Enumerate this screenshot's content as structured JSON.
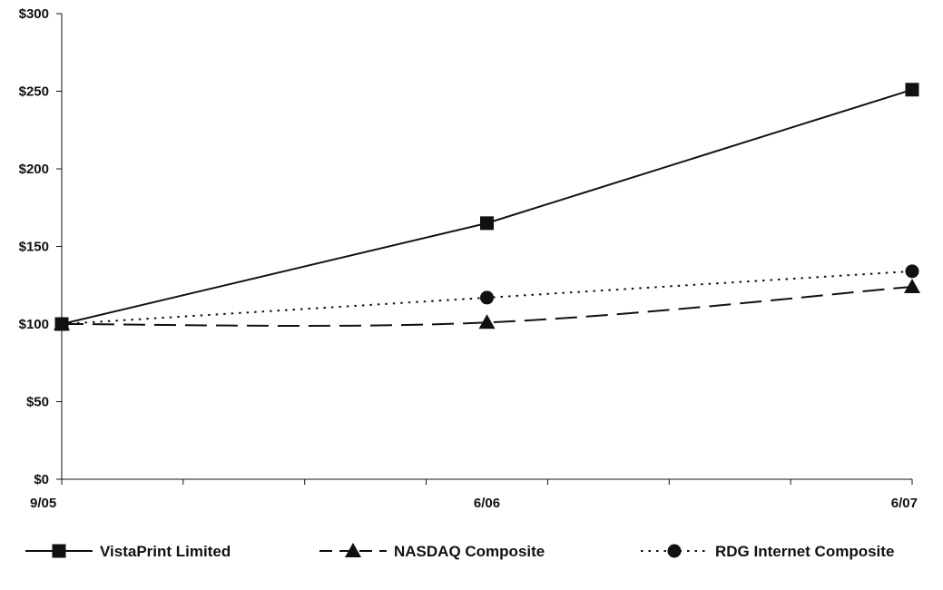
{
  "chart_data": {
    "type": "line",
    "title": "",
    "xlabel": "",
    "ylabel": "",
    "x": [
      "9/05",
      "6/06",
      "6/07"
    ],
    "x_minor_divisions": 7,
    "y_ticks": [
      "$0",
      "$50",
      "$100",
      "$150",
      "$200",
      "$250",
      "$300"
    ],
    "ylim": [
      0,
      300
    ],
    "grid": false,
    "legend_position": "bottom",
    "series": [
      {
        "name": "VistaPrint Limited",
        "values": [
          100,
          165,
          251
        ],
        "marker": "square",
        "dash": "solid",
        "smooth": false,
        "color": "#111111"
      },
      {
        "name": "NASDAQ Composite",
        "values": [
          100,
          101,
          124
        ],
        "marker": "triangle",
        "dash": "long-dash",
        "smooth": true,
        "color": "#111111"
      },
      {
        "name": "RDG Internet Composite",
        "values": [
          100,
          117,
          134
        ],
        "marker": "circle",
        "dash": "dotted",
        "smooth": false,
        "color": "#111111"
      }
    ]
  }
}
